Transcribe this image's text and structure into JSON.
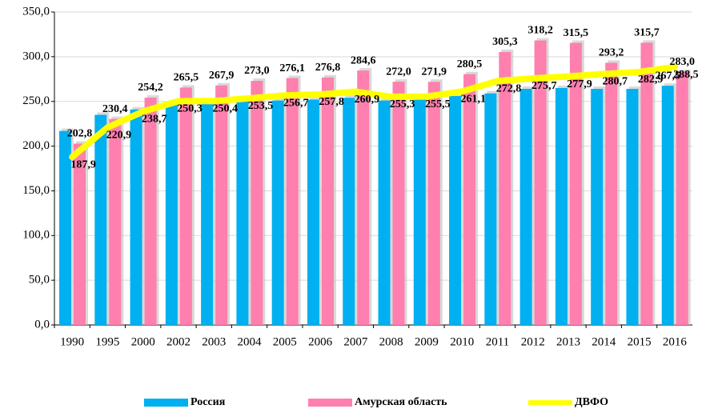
{
  "chart_data": {
    "type": "bar",
    "categories": [
      "1990",
      "1995",
      "2000",
      "2002",
      "2003",
      "2004",
      "2005",
      "2006",
      "2007",
      "2008",
      "2009",
      "2010",
      "2011",
      "2012",
      "2013",
      "2014",
      "2015",
      "2016"
    ],
    "series": [
      {
        "name": "Россия",
        "color": "#00b0f0",
        "type": "bar",
        "values": [
          217,
          235,
          241,
          247,
          248,
          250,
          251,
          252,
          254,
          251,
          252,
          256,
          259,
          264,
          265,
          264,
          264,
          267.5
        ],
        "value_labels": [
          null,
          null,
          null,
          null,
          null,
          null,
          null,
          null,
          null,
          null,
          null,
          null,
          null,
          null,
          null,
          null,
          null,
          "267,5"
        ]
      },
      {
        "name": "Амурская область",
        "color": "#ff7fae",
        "type": "bar",
        "values": [
          202.8,
          230.4,
          254.2,
          265.5,
          267.9,
          273.0,
          276.1,
          276.8,
          284.6,
          272.0,
          271.9,
          280.5,
          305.3,
          318.2,
          315.5,
          293.2,
          315.7,
          283.0
        ],
        "value_labels": [
          "202,8",
          "230,4",
          "254,2",
          "265,5",
          "267,9",
          "273,0",
          "276,1",
          "276,8",
          "284,6",
          "272,0",
          "271,9",
          "280,5",
          "305,3",
          "318,2",
          "315,5",
          "293,2",
          "315,7",
          "283,0"
        ]
      },
      {
        "name": "ДВФО",
        "color": "#ffff00",
        "type": "line",
        "values": [
          187.9,
          220.9,
          238.7,
          250.3,
          250.4,
          253.5,
          256.7,
          257.8,
          260.9,
          255.3,
          255.5,
          261.1,
          272.8,
          275.7,
          277.9,
          280.7,
          282.9,
          288.5
        ],
        "value_labels": [
          "187,9",
          "220,9",
          "238,7",
          "250,3",
          "250,4",
          "253,5",
          "256,7",
          "257,8",
          "260,9",
          "255,3",
          "255,5",
          "261,1",
          "272,8",
          "275,7",
          "277,9",
          "280,7",
          "282,9",
          "288,5"
        ]
      }
    ],
    "ylim": [
      0,
      350
    ],
    "yticks": [
      {
        "value": 0,
        "label": "0,0"
      },
      {
        "value": 50,
        "label": "50,0"
      },
      {
        "value": 100,
        "label": "100,0"
      },
      {
        "value": 150,
        "label": "150,0"
      },
      {
        "value": 200,
        "label": "200,0"
      },
      {
        "value": 250,
        "label": "250,0"
      },
      {
        "value": 300,
        "label": "300,0"
      },
      {
        "value": 350,
        "label": "350,0"
      }
    ],
    "grid": true,
    "legend": "bottom"
  }
}
